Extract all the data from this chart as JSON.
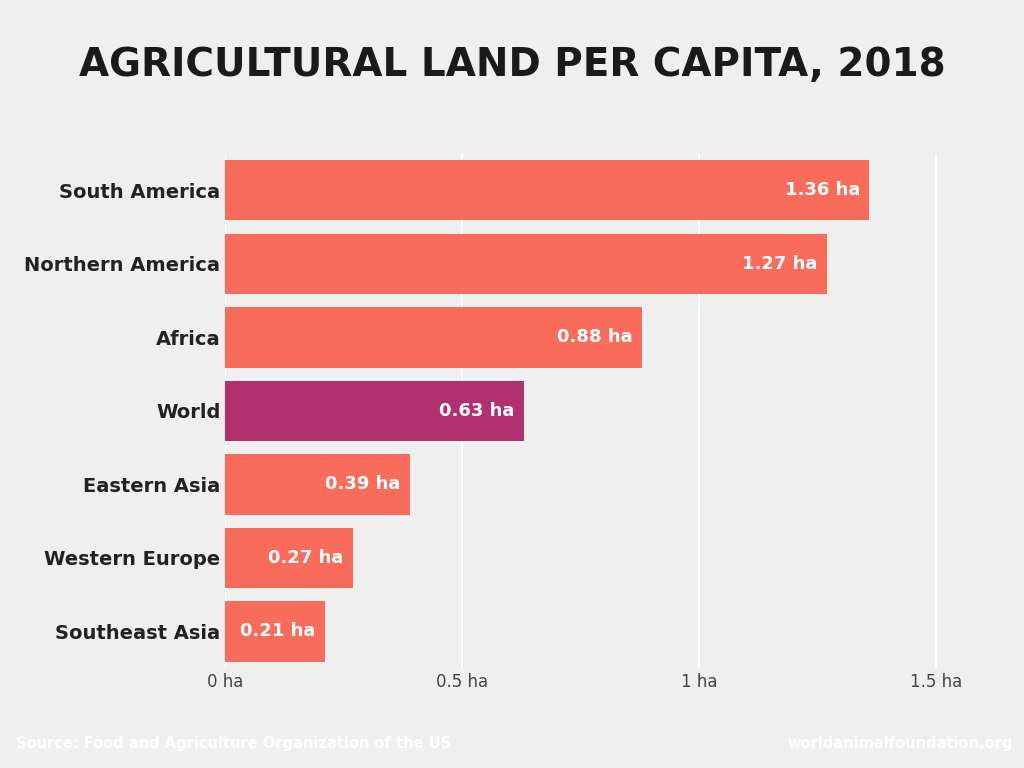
{
  "title": "AGRICULTURAL LAND PER CAPITA, 2018",
  "categories": [
    "South America",
    "Northern America",
    "Africa",
    "World",
    "Eastern Asia",
    "Western Europe",
    "Southeast Asia"
  ],
  "values": [
    1.36,
    1.27,
    0.88,
    0.63,
    0.39,
    0.27,
    0.21
  ],
  "bar_colors": [
    "#F96B5B",
    "#F96B5B",
    "#F96B5B",
    "#B03070",
    "#F96B5B",
    "#F96B5B",
    "#F96B5B"
  ],
  "label_texts": [
    "1.36 ha",
    "1.27 ha",
    "0.88 ha",
    "0.63 ha",
    "0.39 ha",
    "0.27 ha",
    "0.21 ha"
  ],
  "xlim": [
    0,
    1.6
  ],
  "xtick_positions": [
    0,
    0.5,
    1.0,
    1.5
  ],
  "xtick_labels": [
    "0 ha",
    "0.5 ha",
    "1 ha",
    "1.5 ha"
  ],
  "background_color": "#EFEFEF",
  "plot_bg_color": "#EFEFEF",
  "title_fontsize": 28,
  "label_fontsize": 13,
  "ytick_fontsize": 14,
  "xtick_fontsize": 12,
  "footer_left_text": "Source: Food and Agriculture Organization of the US",
  "footer_right_text": "worldanimalfoundation.org",
  "footer_bg_color": "#F96B5B",
  "footer_text_color": "#FFFFFF",
  "bar_height": 0.82
}
